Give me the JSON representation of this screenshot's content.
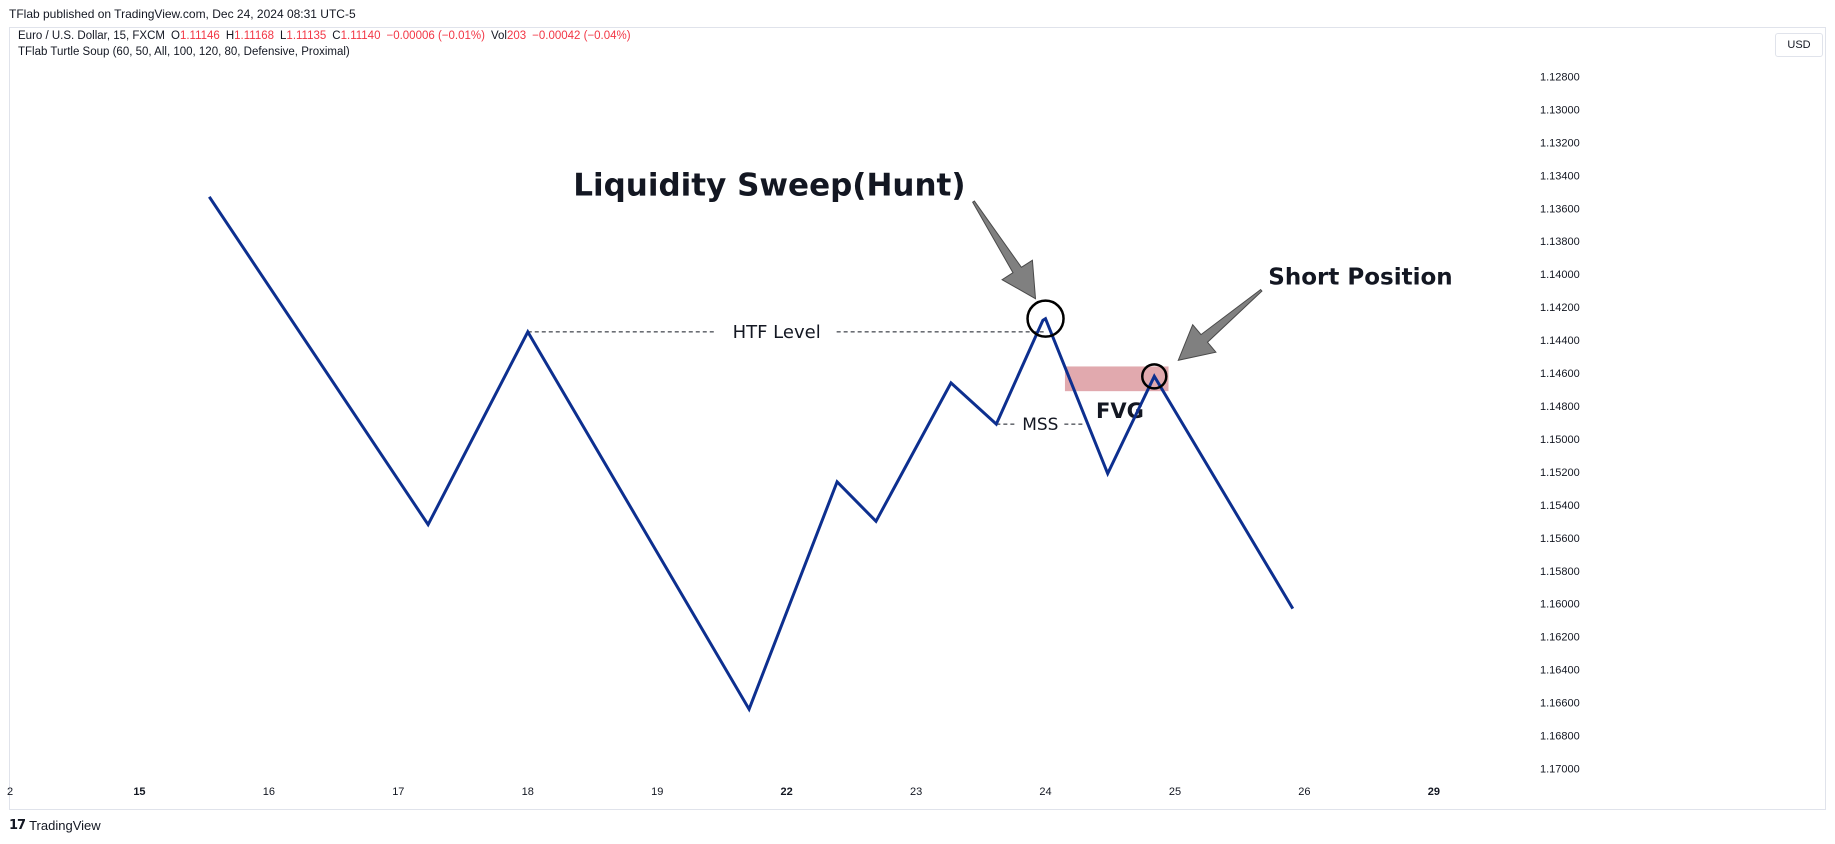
{
  "header": {
    "published_by": "TFlab published on TradingView.com, Dec 24, 2024 08:31 UTC-5"
  },
  "legend": {
    "symbol": "Euro / U.S. Dollar, 15, FXCM",
    "o_label": "O",
    "o_value": "1.11146",
    "h_label": "H",
    "h_value": "1.11168",
    "l_label": "L",
    "l_value": "1.11135",
    "c_label": "C",
    "c_value": "1.11140",
    "change": "−0.00006 (−0.01%)",
    "vol_label": "Vol",
    "vol_value": "203",
    "vol_change": "−0.00042 (−0.04%)",
    "indicator": "TFlab Turtle Soup (60, 50, All, 100, 120, 80, Defensive, Proximal)"
  },
  "currency_button": "USD",
  "footer": {
    "brand": "TradingView",
    "logo_glyph": "17"
  },
  "annotations": {
    "liquidity_sweep": "Liquidity Sweep(Hunt)",
    "short_position": "Short Position",
    "htf_level": "HTF Level",
    "mss": "MSS",
    "fvg": "FVG"
  },
  "colors": {
    "line": "#0d2f8f",
    "fvg_box": "#dc9aa0",
    "arrow": "#808080",
    "value_red": "#f23645"
  },
  "chart_data": {
    "type": "line",
    "title": "",
    "xlabel": "",
    "ylabel": "",
    "y_axis_reversed": true,
    "y_ticks": [
      "1.12800",
      "1.13000",
      "1.13200",
      "1.13400",
      "1.13600",
      "1.13800",
      "1.14000",
      "1.14200",
      "1.14400",
      "1.14600",
      "1.14800",
      "1.15000",
      "1.15200",
      "1.15400",
      "1.15600",
      "1.15800",
      "1.16000",
      "1.16200",
      "1.16400",
      "1.16600",
      "1.16800",
      "1.17000"
    ],
    "y_tick_values": [
      1.128,
      1.13,
      1.132,
      1.134,
      1.136,
      1.138,
      1.14,
      1.142,
      1.144,
      1.146,
      1.148,
      1.15,
      1.152,
      1.154,
      1.156,
      1.158,
      1.16,
      1.162,
      1.164,
      1.166,
      1.168,
      1.17
    ],
    "ylim": [
      1.127,
      1.1707
    ],
    "x_ticks": [
      "2",
      "15",
      "16",
      "17",
      "18",
      "19",
      "22",
      "23",
      "24",
      "25",
      "26",
      "29"
    ],
    "x_tick_values": [
      -1,
      0,
      1,
      2,
      3,
      4,
      5,
      6,
      7,
      8,
      9,
      10
    ],
    "xlim": [
      -1,
      10.65
    ],
    "series": [
      {
        "x": [
          0.54,
          2.23,
          3.0,
          4.71,
          5.39,
          5.69,
          6.27,
          6.62,
          6.98,
          7.0,
          7.48,
          7.84,
          8.91
        ],
        "y": [
          1.1353,
          1.1552,
          1.1435,
          1.1664,
          1.1526,
          1.155,
          1.1466,
          1.1491,
          1.1428,
          1.1427,
          1.1521,
          1.1462,
          1.1603
        ]
      }
    ],
    "htf_level": {
      "y": 1.1435,
      "x_start": 3.0,
      "x_end": 7.0
    },
    "mss_level": {
      "y": 1.1491,
      "x_start": 6.62,
      "x_end": 7.3
    },
    "fvg_zone": {
      "y_top": 1.1456,
      "y_bottom": 1.1471,
      "x_start": 7.15,
      "x_end": 7.95
    },
    "circles_at": [
      {
        "x": 7.0,
        "y": 1.1427
      },
      {
        "x": 7.84,
        "y": 1.1462
      }
    ]
  }
}
